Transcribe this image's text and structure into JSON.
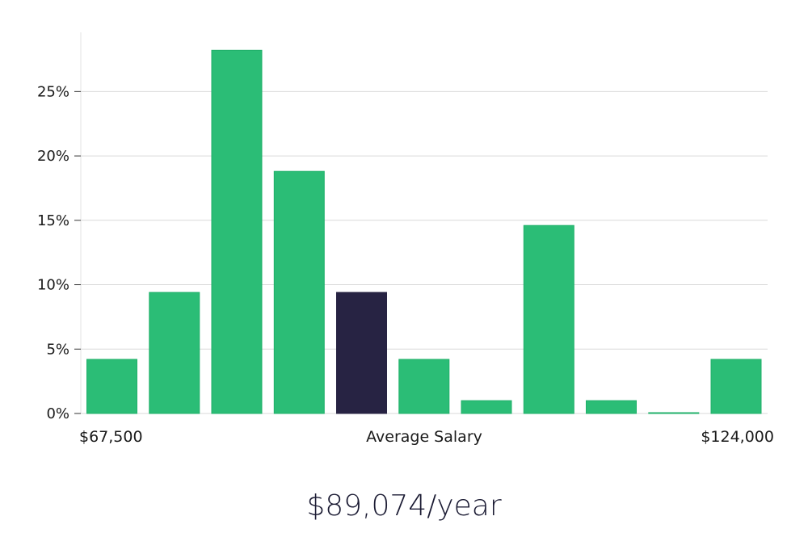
{
  "chart_data": {
    "type": "bar",
    "title": "",
    "xlabel": "Average Salary",
    "x_range_labels": {
      "min": "$67,500",
      "max": "$124,000"
    },
    "ylabel": "",
    "ylim": [
      0,
      29.6
    ],
    "yticks": [
      0,
      5,
      10,
      15,
      20,
      25
    ],
    "ytick_labels": [
      "0%",
      "5%",
      "10%",
      "15%",
      "20%",
      "25%"
    ],
    "grid": true,
    "values": [
      4.2,
      9.4,
      28.2,
      18.8,
      9.4,
      4.2,
      1.0,
      14.6,
      1.0,
      0.05,
      4.2
    ],
    "highlight_index": 4,
    "colors": {
      "bar": "#2bbd76",
      "bar_stroke": "#20b06a",
      "highlight": "#272343",
      "grid": "#d9d9d9",
      "axis": "#bfbfbf"
    }
  },
  "summary": {
    "average_salary": "$89,074/year"
  }
}
